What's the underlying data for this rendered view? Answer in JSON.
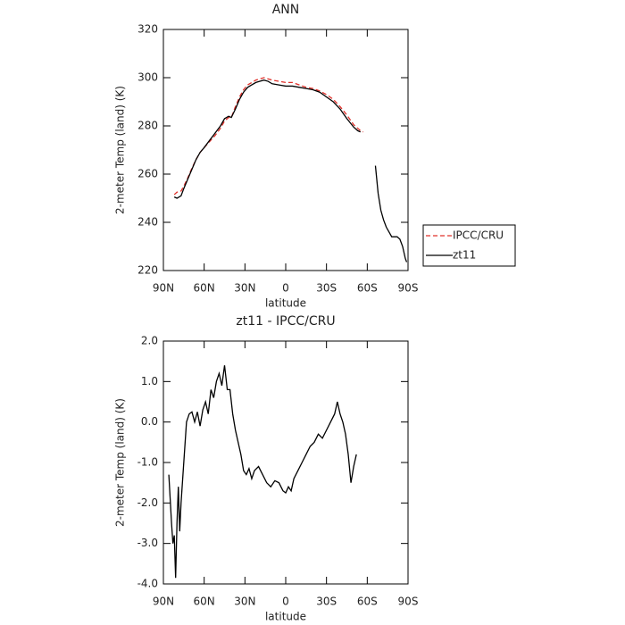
{
  "chart_data": [
    {
      "type": "line",
      "title": "ANN",
      "xlabel": "latitude",
      "ylabel": "2-meter Temp (land) (K)",
      "xlim": [
        90,
        -90
      ],
      "xticks": [
        {
          "value": 90,
          "label": "90N"
        },
        {
          "value": 60,
          "label": "60N"
        },
        {
          "value": 30,
          "label": "30N"
        },
        0,
        {
          "value": -30,
          "label": "30S"
        },
        {
          "value": -60,
          "label": "60S"
        },
        {
          "value": -90,
          "label": "90S"
        }
      ],
      "ylim": [
        220,
        320
      ],
      "yticks": [
        220,
        240,
        260,
        280,
        300,
        320
      ],
      "legend": "right",
      "x": [
        82,
        80,
        77,
        75,
        72,
        69,
        66,
        63,
        60,
        56,
        52,
        48,
        45,
        42,
        40,
        37,
        34,
        31,
        28,
        25,
        22,
        19,
        16,
        13,
        10,
        5,
        0,
        -5,
        -10,
        -15,
        -20,
        -25,
        -30,
        -35,
        -40,
        -45,
        -50,
        -53,
        -55,
        -57,
        -66,
        -68,
        -70,
        -72,
        -74,
        -76,
        -78,
        -80,
        -82,
        -84,
        -86,
        -88,
        -89
      ],
      "series": [
        {
          "name": "IPCC/CRU",
          "color": "#e0302a",
          "style": "dashed",
          "values": [
            251.5,
            252.5,
            253,
            255,
            258.5,
            262.5,
            266,
            269,
            271,
            273.5,
            276,
            279,
            282,
            283.5,
            283.5,
            288,
            292,
            295,
            297,
            298,
            299,
            299.5,
            300,
            299.5,
            299,
            298.5,
            298,
            298,
            297,
            296,
            295.5,
            294.5,
            293,
            291,
            288,
            284.5,
            280.5,
            279,
            278,
            277.5,
            null,
            null,
            null,
            null,
            null,
            null,
            null,
            null,
            null,
            null,
            null,
            null,
            null
          ]
        },
        {
          "name": "zt11",
          "color": "#000000",
          "style": "solid",
          "values": [
            250.5,
            250,
            251,
            254,
            258,
            262,
            266,
            269,
            271,
            274,
            277,
            280,
            283,
            284,
            283.5,
            287,
            291,
            294,
            296,
            297,
            298,
            298.5,
            299,
            298.5,
            297.5,
            297,
            296.5,
            296.5,
            296,
            295.5,
            295,
            294,
            292,
            290,
            287,
            283,
            279.5,
            278,
            277.5,
            null,
            263.5,
            252,
            245,
            241,
            238,
            236,
            234,
            234,
            234,
            233,
            230,
            225,
            223.5
          ]
        }
      ]
    },
    {
      "type": "line",
      "title": "zt11 - IPCC/CRU",
      "xlabel": "latitude",
      "ylabel": "2-meter Temp (land) (K)",
      "xlim": [
        90,
        -90
      ],
      "xticks": [
        {
          "value": 90,
          "label": "90N"
        },
        {
          "value": 60,
          "label": "60N"
        },
        {
          "value": 30,
          "label": "30N"
        },
        0,
        {
          "value": -30,
          "label": "30S"
        },
        {
          "value": -60,
          "label": "60S"
        },
        {
          "value": -90,
          "label": "90S"
        }
      ],
      "ylim": [
        -4,
        2
      ],
      "yticks": [
        {
          "value": -4,
          "label": "-4.0"
        },
        {
          "value": -3,
          "label": "-3.0"
        },
        {
          "value": -2,
          "label": "-2.0"
        },
        {
          "value": -1,
          "label": "-1.0"
        },
        {
          "value": 0,
          "label": "0.0"
        },
        {
          "value": 1,
          "label": "1.0"
        },
        {
          "value": 2,
          "label": "2.0"
        }
      ],
      "x": [
        86,
        84,
        83,
        82,
        81,
        80,
        79,
        78,
        77,
        75,
        73,
        71,
        69,
        67,
        65,
        63,
        61,
        59,
        57,
        55,
        53,
        51,
        49,
        47,
        45,
        43,
        41,
        39,
        37,
        35,
        33,
        31,
        29,
        27,
        25,
        23,
        20,
        17,
        14,
        11,
        8,
        5,
        2,
        0,
        -2,
        -4,
        -6,
        -9,
        -12,
        -15,
        -18,
        -21,
        -24,
        -27,
        -30,
        -33,
        -36,
        -38,
        -40,
        -42,
        -44,
        -46,
        -48,
        -50,
        -52
      ],
      "series": [
        {
          "color": "#000000",
          "style": "solid",
          "values": [
            -1.3,
            -2.5,
            -3.0,
            -2.8,
            -3.85,
            -2.5,
            -1.6,
            -2.7,
            -2.0,
            -1.0,
            0.0,
            0.2,
            0.25,
            0.0,
            0.25,
            -0.1,
            0.3,
            0.5,
            0.2,
            0.8,
            0.6,
            1.0,
            1.2,
            0.9,
            1.4,
            0.8,
            0.8,
            0.2,
            -0.2,
            -0.5,
            -0.8,
            -1.2,
            -1.3,
            -1.15,
            -1.4,
            -1.2,
            -1.1,
            -1.3,
            -1.5,
            -1.6,
            -1.45,
            -1.5,
            -1.7,
            -1.75,
            -1.6,
            -1.7,
            -1.4,
            -1.2,
            -1.0,
            -0.8,
            -0.6,
            -0.5,
            -0.3,
            -0.4,
            -0.2,
            0.0,
            0.2,
            0.5,
            0.2,
            0.0,
            -0.3,
            -0.8,
            -1.5,
            -1.1,
            -0.8
          ]
        }
      ]
    }
  ]
}
